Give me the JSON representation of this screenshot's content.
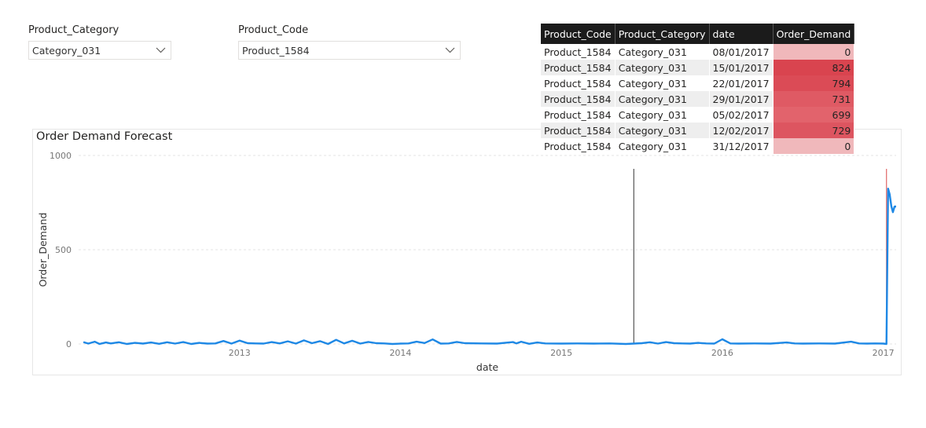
{
  "slicers": {
    "category": {
      "title": "Product_Category",
      "value": "Category_031"
    },
    "code": {
      "title": "Product_Code",
      "value": "Product_1584"
    }
  },
  "table": {
    "headers": [
      "Product_Code",
      "Product_Category",
      "date",
      "Order_Demand"
    ],
    "rows": [
      [
        "Product_1584",
        "Category_031",
        "08/01/2017",
        "0"
      ],
      [
        "Product_1584",
        "Category_031",
        "15/01/2017",
        "824"
      ],
      [
        "Product_1584",
        "Category_031",
        "22/01/2017",
        "794"
      ],
      [
        "Product_1584",
        "Category_031",
        "29/01/2017",
        "731"
      ],
      [
        "Product_1584",
        "Category_031",
        "05/02/2017",
        "699"
      ],
      [
        "Product_1584",
        "Category_031",
        "12/02/2017",
        "729"
      ],
      [
        "Product_1584",
        "Category_031",
        "31/12/2017",
        "0"
      ]
    ],
    "heat_colors": [
      "#f0b8bb",
      "#d9444f",
      "#db4b56",
      "#df5a64",
      "#e2636c",
      "#dd5560",
      "#f0b8bb"
    ]
  },
  "chart_data": {
    "type": "line",
    "title": "Order Demand Forecast",
    "xlabel": "date",
    "ylabel": "Order_Demand",
    "x_ticks": [
      "2013",
      "2014",
      "2015",
      "2016",
      "2017"
    ],
    "y_ticks": [
      "0",
      "500",
      "1000"
    ],
    "xlim": [
      2012.0,
      2017.08
    ],
    "ylim": [
      0,
      1000
    ],
    "grid": true,
    "line_color": "#1e88e5",
    "reference_lines": [
      {
        "x": 2015.45,
        "color": "#555555"
      },
      {
        "x": 2017.02,
        "color": "#e06666"
      }
    ],
    "series": [
      {
        "x": [
          2012.03,
          2012.06,
          2012.1,
          2012.13,
          2012.17,
          2012.2,
          2012.25,
          2012.3,
          2012.35,
          2012.4,
          2012.45,
          2012.5,
          2012.55,
          2012.6,
          2012.65,
          2012.7,
          2012.75,
          2012.8,
          2012.85,
          2012.9,
          2012.95,
          2013.0,
          2013.05,
          2013.1,
          2013.15,
          2013.2,
          2013.25,
          2013.3,
          2013.35,
          2013.4,
          2013.45,
          2013.5,
          2013.55,
          2013.6,
          2013.65,
          2013.7,
          2013.75,
          2013.8,
          2013.85,
          2013.9,
          2013.95,
          2014.0,
          2014.05,
          2014.1,
          2014.15,
          2014.2,
          2014.25,
          2014.3,
          2014.35,
          2014.4,
          2014.5,
          2014.6,
          2014.7,
          2014.72,
          2014.75,
          2014.8,
          2014.85,
          2014.9,
          2015.0,
          2015.1,
          2015.2,
          2015.3,
          2015.4,
          2015.5,
          2015.55,
          2015.6,
          2015.65,
          2015.7,
          2015.75,
          2015.8,
          2015.85,
          2015.9,
          2015.95,
          2016.0,
          2016.05,
          2016.1,
          2016.2,
          2016.3,
          2016.4,
          2016.45,
          2016.5,
          2016.6,
          2016.7,
          2016.8,
          2016.85,
          2016.9,
          2016.95,
          2017.0,
          2017.02,
          2017.03,
          2017.04,
          2017.05,
          2017.06,
          2017.07,
          2017.08
        ],
        "y": [
          10,
          2,
          12,
          0,
          8,
          3,
          9,
          0,
          6,
          2,
          8,
          1,
          9,
          2,
          10,
          0,
          6,
          2,
          3,
          16,
          2,
          18,
          4,
          3,
          2,
          10,
          3,
          14,
          2,
          19,
          4,
          15,
          0,
          22,
          3,
          17,
          2,
          11,
          4,
          3,
          0,
          2,
          3,
          12,
          5,
          24,
          2,
          3,
          11,
          4,
          3,
          2,
          10,
          3,
          12,
          1,
          8,
          3,
          2,
          3,
          2,
          3,
          0,
          4,
          9,
          2,
          10,
          4,
          3,
          2,
          6,
          3,
          2,
          25,
          3,
          2,
          3,
          2,
          8,
          3,
          2,
          3,
          2,
          12,
          3,
          2,
          3,
          2,
          0,
          824,
          794,
          731,
          699,
          729,
          729
        ]
      }
    ]
  }
}
